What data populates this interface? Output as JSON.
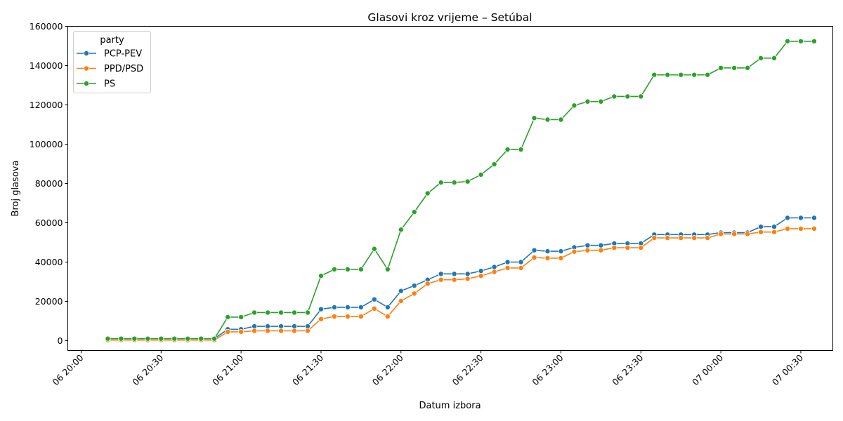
{
  "chart_data": {
    "type": "line",
    "title": "Glasovi kroz vrijeme – Setúbal",
    "xlabel": "Datum izbora",
    "ylabel": "Broj glasova",
    "legend_title": "party",
    "legend_position": "top-left",
    "grid": false,
    "x_range": [
      "2024-03-06 19:55",
      "2024-03-07 00:42"
    ],
    "ylim": [
      -5000,
      160000
    ],
    "x_ticks": [
      {
        "t": "2024-03-06 20:00",
        "label": "06 20:00"
      },
      {
        "t": "2024-03-06 20:30",
        "label": "06 20:30"
      },
      {
        "t": "2024-03-06 21:00",
        "label": "06 21:00"
      },
      {
        "t": "2024-03-06 21:30",
        "label": "06 21:30"
      },
      {
        "t": "2024-03-06 22:00",
        "label": "06 22:00"
      },
      {
        "t": "2024-03-06 22:30",
        "label": "06 22:30"
      },
      {
        "t": "2024-03-06 23:00",
        "label": "06 23:00"
      },
      {
        "t": "2024-03-06 23:30",
        "label": "06 23:30"
      },
      {
        "t": "2024-03-07 00:00",
        "label": "07 00:00"
      },
      {
        "t": "2024-03-07 00:30",
        "label": "07 00:30"
      }
    ],
    "y_ticks": [
      0,
      20000,
      40000,
      60000,
      80000,
      100000,
      120000,
      140000,
      160000
    ],
    "x": [
      "2024-03-06 20:10",
      "2024-03-06 20:15",
      "2024-03-06 20:20",
      "2024-03-06 20:25",
      "2024-03-06 20:30",
      "2024-03-06 20:35",
      "2024-03-06 20:40",
      "2024-03-06 20:45",
      "2024-03-06 20:50",
      "2024-03-06 20:55",
      "2024-03-06 21:00",
      "2024-03-06 21:05",
      "2024-03-06 21:10",
      "2024-03-06 21:15",
      "2024-03-06 21:20",
      "2024-03-06 21:25",
      "2024-03-06 21:30",
      "2024-03-06 21:35",
      "2024-03-06 21:40",
      "2024-03-06 21:45",
      "2024-03-06 21:50",
      "2024-03-06 21:55",
      "2024-03-06 22:00",
      "2024-03-06 22:05",
      "2024-03-06 22:10",
      "2024-03-06 22:15",
      "2024-03-06 22:20",
      "2024-03-06 22:25",
      "2024-03-06 22:30",
      "2024-03-06 22:35",
      "2024-03-06 22:40",
      "2024-03-06 22:45",
      "2024-03-06 22:50",
      "2024-03-06 22:55",
      "2024-03-06 23:00",
      "2024-03-06 23:05",
      "2024-03-06 23:10",
      "2024-03-06 23:15",
      "2024-03-06 23:20",
      "2024-03-06 23:25",
      "2024-03-06 23:30",
      "2024-03-06 23:35",
      "2024-03-06 23:40",
      "2024-03-06 23:45",
      "2024-03-06 23:50",
      "2024-03-06 23:55",
      "2024-03-07 00:00",
      "2024-03-07 00:05",
      "2024-03-07 00:10",
      "2024-03-07 00:15",
      "2024-03-07 00:20",
      "2024-03-07 00:25",
      "2024-03-07 00:30",
      "2024-03-07 00:35"
    ],
    "series": [
      {
        "name": "PCP-PEV",
        "color": "#1f77b4",
        "values": [
          1000,
          1000,
          1000,
          1000,
          1000,
          1000,
          1000,
          1000,
          1000,
          5800,
          5800,
          7300,
          7300,
          7300,
          7300,
          7300,
          16000,
          17000,
          17000,
          17000,
          21000,
          17000,
          25300,
          28000,
          31000,
          34000,
          34000,
          34000,
          35500,
          37500,
          40000,
          40000,
          46000,
          45500,
          45500,
          47500,
          48500,
          48500,
          49500,
          49500,
          49500,
          54000,
          54000,
          54000,
          54000,
          54000,
          55000,
          55000,
          55000,
          58000,
          58000,
          62500,
          62500,
          62500
        ]
      },
      {
        "name": "PPD/PSD",
        "color": "#ff7f0e",
        "values": [
          300,
          300,
          300,
          300,
          300,
          300,
          300,
          300,
          300,
          4500,
          4500,
          5000,
          5000,
          5000,
          5000,
          5000,
          11000,
          12300,
          12300,
          12300,
          16300,
          12300,
          20200,
          24000,
          29000,
          31000,
          31000,
          31500,
          33000,
          35000,
          37000,
          37000,
          42300,
          42000,
          42000,
          45300,
          46000,
          46000,
          47300,
          47300,
          47300,
          52300,
          52300,
          52300,
          52300,
          52300,
          54300,
          54300,
          54300,
          55300,
          55300,
          57000,
          57000,
          57000
        ]
      },
      {
        "name": "PS",
        "color": "#2ca02c",
        "values": [
          1000,
          1000,
          1000,
          1000,
          1000,
          1000,
          1000,
          1000,
          1000,
          12000,
          12000,
          14300,
          14300,
          14300,
          14300,
          14300,
          33000,
          36300,
          36300,
          36300,
          46700,
          36300,
          56500,
          65500,
          75000,
          80500,
          80500,
          81000,
          84500,
          89800,
          97300,
          97300,
          113300,
          112500,
          112500,
          119700,
          121700,
          121700,
          124300,
          124300,
          124300,
          135300,
          135300,
          135300,
          135300,
          135300,
          138800,
          138800,
          138800,
          143800,
          143800,
          152400,
          152400,
          152400
        ]
      }
    ]
  }
}
